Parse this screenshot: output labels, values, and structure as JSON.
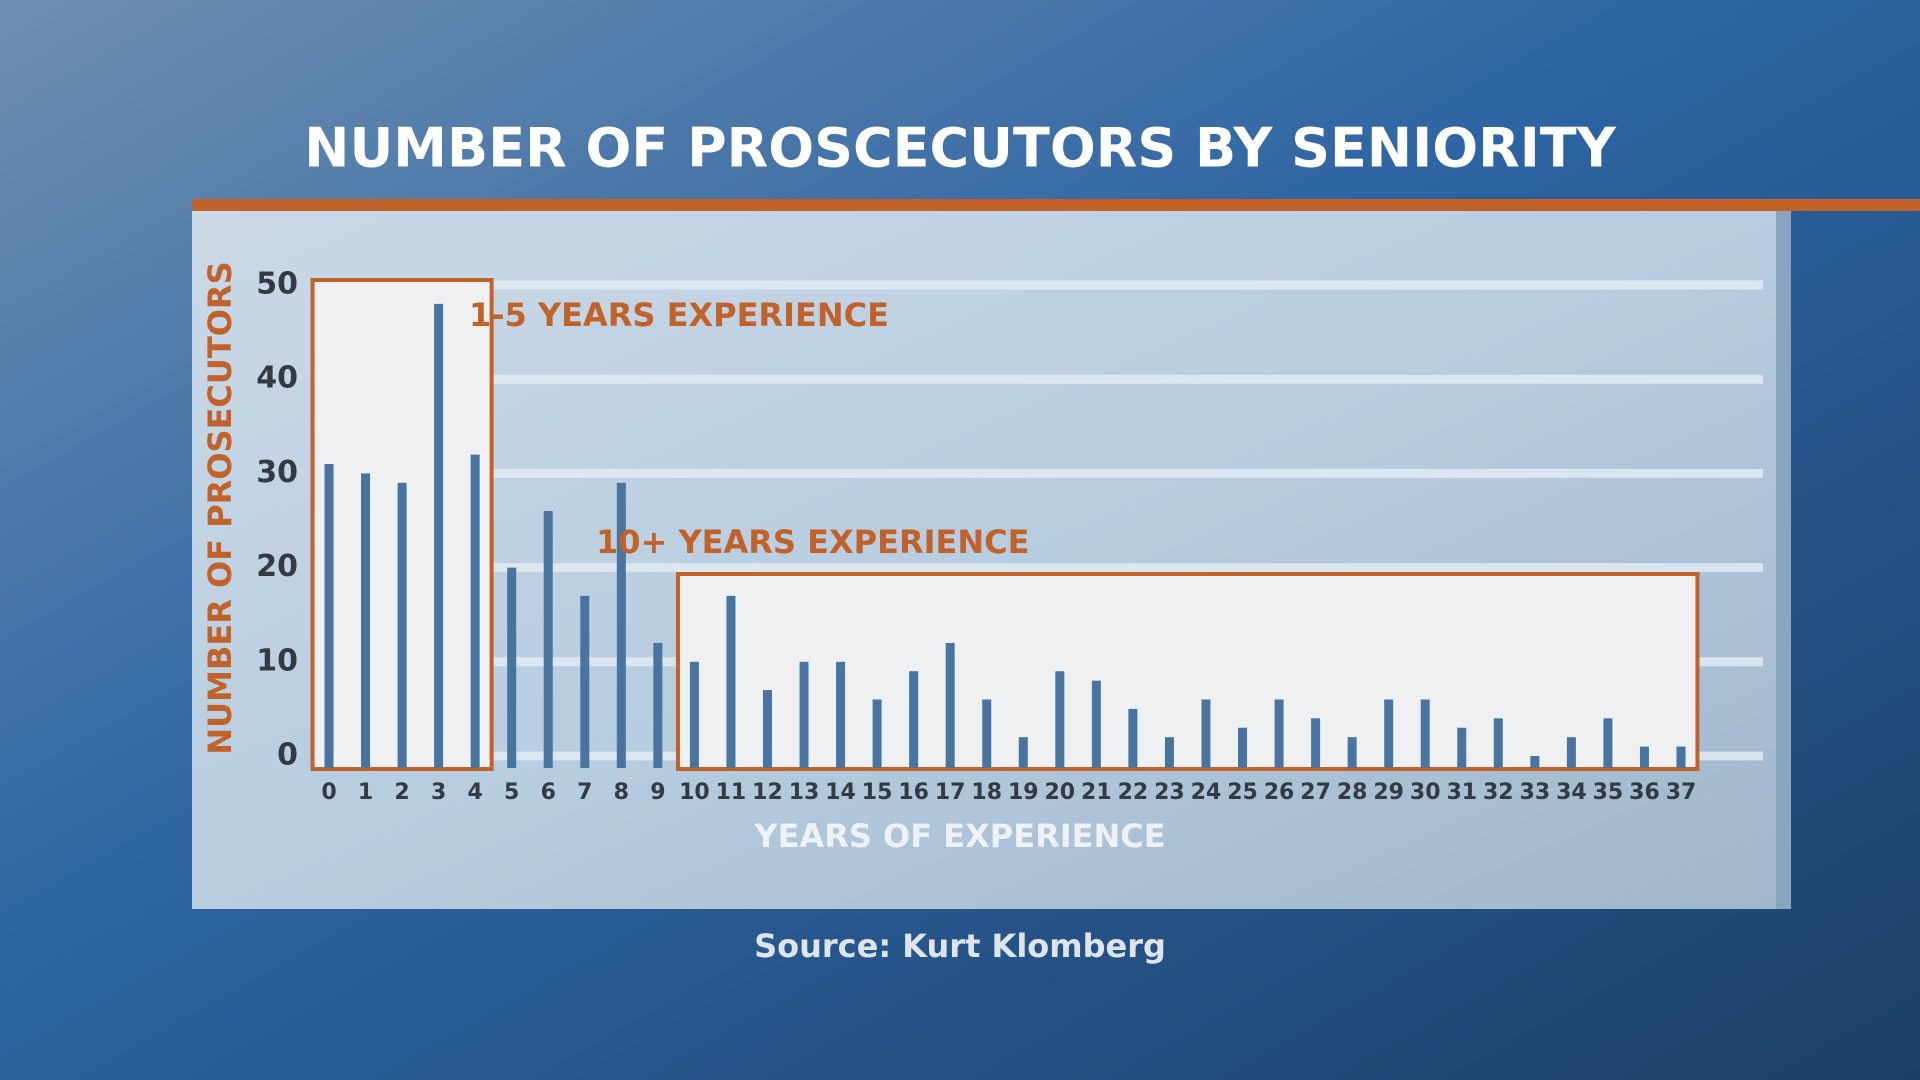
{
  "chart_data": {
    "type": "bar",
    "title": "NUMBER OF PROSCECUTORS BY SENIORITY",
    "x_label": "YEARS OF EXPERIENCE",
    "y_label": "NUMBER OF PROSECUTORS",
    "source": "Source: Kurt Klomberg",
    "annotations": [
      "1-5 YEARS EXPERIENCE",
      "10+ YEARS EXPERIENCE"
    ],
    "categories": [
      "0",
      "1",
      "2",
      "3",
      "4",
      "5",
      "6",
      "7",
      "8",
      "9",
      "10",
      "11",
      "12",
      "13",
      "14",
      "15",
      "16",
      "17",
      "18",
      "19",
      "20",
      "21",
      "22",
      "23",
      "24",
      "25",
      "26",
      "27",
      "28",
      "29",
      "30",
      "31",
      "32",
      "33",
      "34",
      "35",
      "36",
      "37"
    ],
    "values": [
      31,
      30,
      29,
      48,
      32,
      20,
      26,
      17,
      29,
      12,
      10,
      17,
      7,
      10,
      10,
      6,
      9,
      12,
      6,
      2,
      9,
      8,
      5,
      2,
      6,
      3,
      6,
      4,
      2,
      6,
      6,
      3,
      4,
      0,
      2,
      4,
      1,
      1
    ],
    "color": "#4a74a0",
    "ylim": [
      0,
      50
    ],
    "yticks": [
      0,
      10,
      20,
      30,
      40,
      50
    ],
    "grid": true
  }
}
